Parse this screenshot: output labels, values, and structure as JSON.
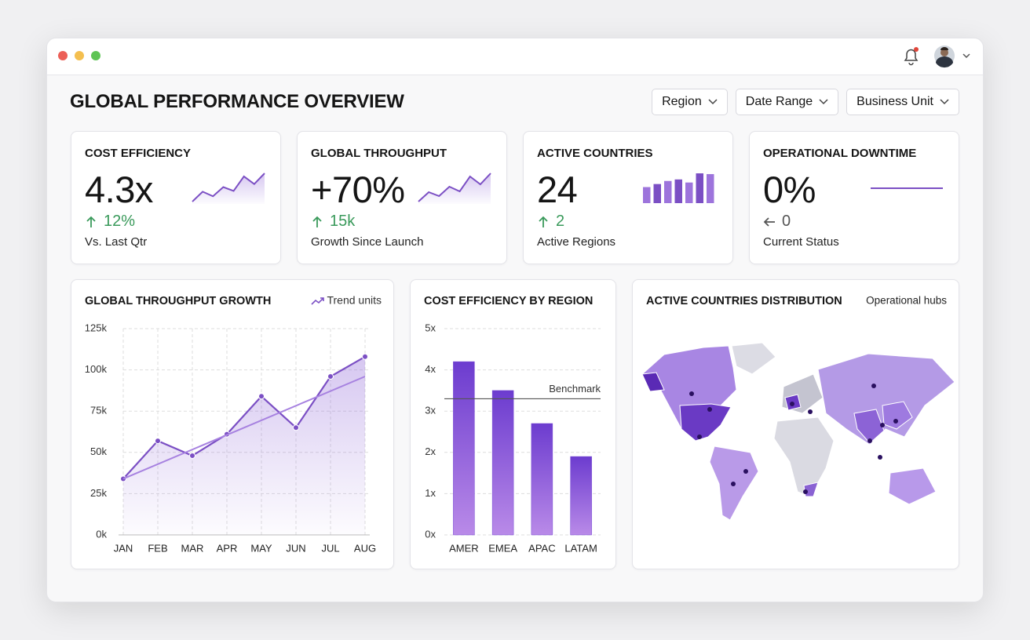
{
  "header": {
    "title": "GLOBAL PERFORMANCE OVERVIEW",
    "filters": [
      "Region",
      "Date Range",
      "Business Unit"
    ]
  },
  "kpis": [
    {
      "label": "COST EFFICIENCY",
      "value": "4.3x",
      "change": "12%",
      "caption": "Vs. Last Qtr",
      "spark": {
        "type": "area",
        "values": [
          2,
          15,
          9,
          21,
          16,
          35,
          25,
          39
        ]
      }
    },
    {
      "label": "GLOBAL THROUGHPUT",
      "value": "+70%",
      "change": "15k",
      "caption": "Growth Since Launch",
      "spark": {
        "type": "area",
        "values": [
          2,
          14,
          9,
          21,
          15,
          34,
          24,
          38
        ]
      }
    },
    {
      "label": "ACTIVE COUNTRIES",
      "value": "24",
      "change": "2",
      "caption": "Active Regions",
      "spark": {
        "type": "bars",
        "values": [
          21,
          25,
          29,
          31,
          27,
          39,
          38
        ]
      }
    },
    {
      "label": "OPERATIONAL DOWNTIME",
      "value": "0%",
      "change": "0",
      "caption": "Current Status",
      "spark": {
        "type": "line",
        "values": [
          0,
          0
        ]
      }
    }
  ],
  "charts": [
    {
      "type": "line",
      "title": "GLOBAL THROUGHPUT GROWTH",
      "categories": [
        "JAN",
        "FEB",
        "MAR",
        "APR",
        "MAY",
        "JUN",
        "JUL",
        "AUG"
      ],
      "series": [
        {
          "name": "Trend units",
          "color": "#7b4fc4",
          "values": [
            34000,
            57000,
            48000,
            61000,
            84000,
            65000,
            96000,
            108000
          ]
        }
      ],
      "trendline": [
        34000,
        96000
      ],
      "ylim": [
        0,
        125000
      ],
      "yticks": [
        {
          "value": 0,
          "label": "0k"
        },
        {
          "value": 25000,
          "label": "25k"
        },
        {
          "value": 50000,
          "label": "50k"
        },
        {
          "value": 75000,
          "label": "75k"
        },
        {
          "value": 100000,
          "label": "100k"
        },
        {
          "value": 125000,
          "label": "125k"
        }
      ],
      "grid": true
    },
    {
      "type": "bar",
      "title": "COST EFFICIENCY BY REGION",
      "categories": [
        "AMER",
        "EMEA",
        "APAC",
        "LATAM"
      ],
      "values": [
        4.2,
        3.5,
        2.7,
        1.9
      ],
      "color": "#7344d2",
      "benchmark": {
        "label": "Benchmark",
        "value": 3.3
      },
      "ylim": [
        0,
        5
      ],
      "yticks": [
        {
          "value": 0,
          "label": "0x"
        },
        {
          "value": 1,
          "label": "1x"
        },
        {
          "value": 2,
          "label": "2x"
        },
        {
          "value": 3,
          "label": "3x"
        },
        {
          "value": 4,
          "label": "4x"
        },
        {
          "value": 5,
          "label": "5x"
        }
      ],
      "grid": true
    }
  ],
  "map": {
    "title": "ACTIVE COUNTRIES DISTRIBUTION",
    "note": "Operational hubs"
  }
}
